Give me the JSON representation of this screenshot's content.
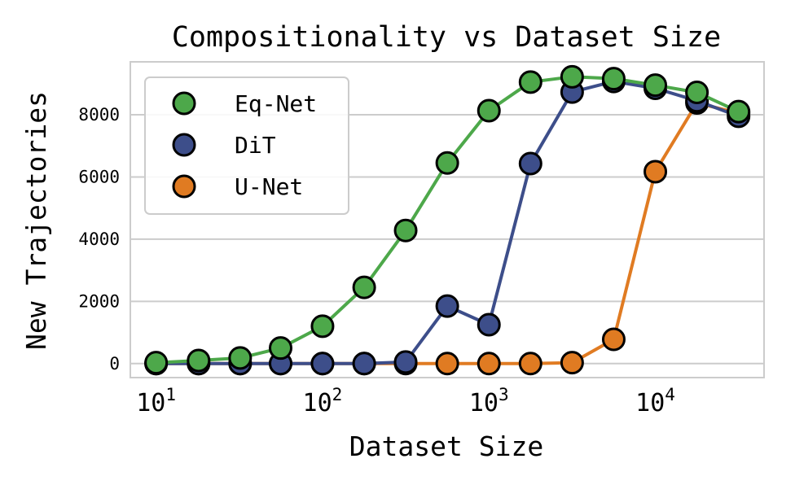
{
  "chart_data": {
    "type": "line",
    "title": "Compositionality vs Dataset Size",
    "xlabel": "Dataset Size",
    "ylabel": "New Trajectories",
    "xscale": "log",
    "xlim": [
      7,
      45000
    ],
    "ylim": [
      -450,
      9700
    ],
    "xticks": [
      10,
      100,
      1000,
      10000
    ],
    "xtick_labels": [
      {
        "base": "10",
        "exp": "1"
      },
      {
        "base": "10",
        "exp": "2"
      },
      {
        "base": "10",
        "exp": "3"
      },
      {
        "base": "10",
        "exp": "4"
      }
    ],
    "yticks": [
      0,
      2000,
      4000,
      6000,
      8000
    ],
    "ytick_labels": [
      "0",
      "2000",
      "4000",
      "6000",
      "8000"
    ],
    "grid": "horizontal",
    "legend_position": "top-left",
    "x": [
      10,
      18,
      32,
      56,
      100,
      178,
      316,
      562,
      1000,
      1778,
      3162,
      5623,
      10000,
      17783,
      31623
    ],
    "series": [
      {
        "name": "U-Net",
        "color": "#e07b22",
        "values": [
          0,
          0,
          0,
          0,
          0,
          0,
          0,
          0,
          0,
          0,
          30,
          780,
          6170,
          8380,
          8050
        ]
      },
      {
        "name": "DiT",
        "color": "#3d4e8a",
        "values": [
          0,
          0,
          0,
          0,
          0,
          0,
          50,
          1850,
          1250,
          6430,
          8730,
          9070,
          8850,
          8450,
          7950
        ]
      },
      {
        "name": "Eq-Net",
        "color": "#4da84a",
        "values": [
          30,
          100,
          180,
          500,
          1200,
          2450,
          4280,
          6450,
          8130,
          9050,
          9220,
          9160,
          8950,
          8720,
          8100
        ]
      }
    ],
    "legend_order": [
      "Eq-Net",
      "DiT",
      "U-Net"
    ]
  }
}
